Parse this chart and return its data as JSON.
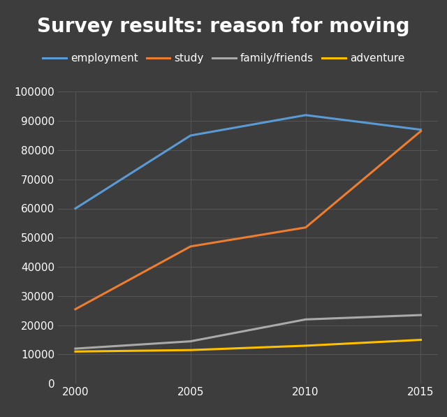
{
  "title": "Survey results: reason for moving",
  "background_color": "#3d3d3d",
  "text_color": "#ffffff",
  "grid_color": "#555555",
  "years": [
    2000,
    2005,
    2010,
    2015
  ],
  "series": [
    {
      "label": "employment",
      "color": "#5b9bd5",
      "values": [
        60000,
        85000,
        92000,
        87000
      ]
    },
    {
      "label": "study",
      "color": "#ed7d31",
      "values": [
        25500,
        47000,
        53500,
        86500
      ]
    },
    {
      "label": "family/friends",
      "color": "#aaaaaa",
      "values": [
        12000,
        14500,
        22000,
        23500
      ]
    },
    {
      "label": "adventure",
      "color": "#ffc000",
      "values": [
        11000,
        11500,
        13000,
        15000
      ]
    }
  ],
  "ylim": [
    0,
    100000
  ],
  "yticks": [
    0,
    10000,
    20000,
    30000,
    40000,
    50000,
    60000,
    70000,
    80000,
    90000,
    100000
  ],
  "xticks": [
    2000,
    2005,
    2010,
    2015
  ],
  "title_fontsize": 20,
  "legend_fontsize": 11,
  "tick_fontsize": 11,
  "linewidth": 2.2
}
